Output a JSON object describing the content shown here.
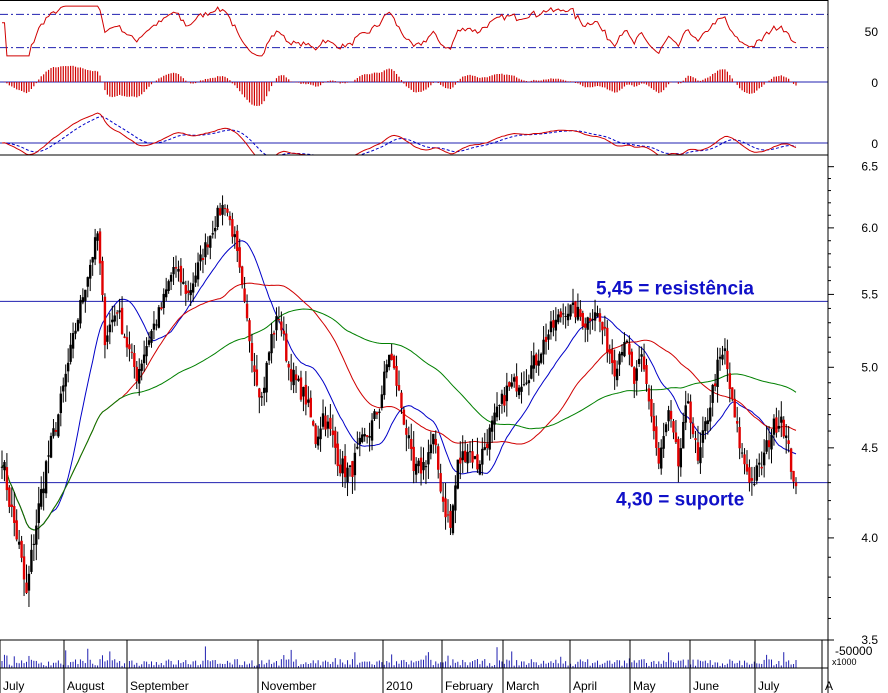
{
  "chart_data": {
    "type": "candlestick",
    "scale": "log",
    "ylim": [
      3.5,
      6.6
    ],
    "price_ticks": [
      "6.5",
      "6.0",
      "5.5",
      "5.0",
      "4.5",
      "4.0",
      "3.5"
    ],
    "x_labels": [
      "July",
      "August",
      "September",
      "November",
      "2010",
      "February",
      "March",
      "April",
      "May",
      "June",
      "July",
      "A"
    ],
    "annotations": [
      {
        "text": "5,45 = resistência",
        "value": 5.45
      },
      {
        "text": "4,30 = suporte",
        "value": 4.3
      }
    ],
    "indicators": {
      "rsi": {
        "tick": "50",
        "bands": [
          30,
          70
        ]
      },
      "macd_hist": {
        "tick": "0"
      },
      "macd_lines": {
        "tick": "0"
      }
    },
    "volume": {
      "tick": "50000",
      "unit": "x1000"
    },
    "keypoints": [
      {
        "i": 0,
        "c": 4.45
      },
      {
        "i": 3,
        "c": 4.2
      },
      {
        "i": 7,
        "c": 3.95
      },
      {
        "i": 10,
        "c": 3.7
      },
      {
        "i": 13,
        "c": 4.0
      },
      {
        "i": 18,
        "c": 4.4
      },
      {
        "i": 23,
        "c": 4.7
      },
      {
        "i": 28,
        "c": 5.1
      },
      {
        "i": 33,
        "c": 5.5
      },
      {
        "i": 37,
        "c": 5.8
      },
      {
        "i": 39,
        "c": 5.95
      },
      {
        "i": 42,
        "c": 5.2
      },
      {
        "i": 47,
        "c": 5.4
      },
      {
        "i": 51,
        "c": 5.15
      },
      {
        "i": 55,
        "c": 4.95
      },
      {
        "i": 60,
        "c": 5.2
      },
      {
        "i": 65,
        "c": 5.4
      },
      {
        "i": 70,
        "c": 5.7
      },
      {
        "i": 76,
        "c": 5.5
      },
      {
        "i": 82,
        "c": 5.8
      },
      {
        "i": 88,
        "c": 6.1
      },
      {
        "i": 91,
        "c": 6.2
      },
      {
        "i": 95,
        "c": 5.9
      },
      {
        "i": 99,
        "c": 5.4
      },
      {
        "i": 103,
        "c": 5.0
      },
      {
        "i": 106,
        "c": 4.8
      },
      {
        "i": 110,
        "c": 5.2
      },
      {
        "i": 113,
        "c": 5.35
      },
      {
        "i": 117,
        "c": 5.0
      },
      {
        "i": 120,
        "c": 4.9
      },
      {
        "i": 124,
        "c": 4.8
      },
      {
        "i": 128,
        "c": 4.55
      },
      {
        "i": 131,
        "c": 4.7
      },
      {
        "i": 135,
        "c": 4.55
      },
      {
        "i": 138,
        "c": 4.4
      },
      {
        "i": 142,
        "c": 4.35
      },
      {
        "i": 146,
        "c": 4.5
      },
      {
        "i": 150,
        "c": 4.6
      },
      {
        "i": 154,
        "c": 4.75
      },
      {
        "i": 158,
        "c": 5.1
      },
      {
        "i": 161,
        "c": 4.9
      },
      {
        "i": 165,
        "c": 4.6
      },
      {
        "i": 168,
        "c": 4.35
      },
      {
        "i": 172,
        "c": 4.4
      },
      {
        "i": 176,
        "c": 4.55
      },
      {
        "i": 180,
        "c": 4.2
      },
      {
        "i": 183,
        "c": 4.05
      },
      {
        "i": 186,
        "c": 4.4
      },
      {
        "i": 190,
        "c": 4.5
      },
      {
        "i": 194,
        "c": 4.4
      },
      {
        "i": 198,
        "c": 4.55
      },
      {
        "i": 202,
        "c": 4.7
      },
      {
        "i": 206,
        "c": 4.85
      },
      {
        "i": 210,
        "c": 4.9
      },
      {
        "i": 214,
        "c": 4.95
      },
      {
        "i": 218,
        "c": 5.05
      },
      {
        "i": 222,
        "c": 5.2
      },
      {
        "i": 226,
        "c": 5.3
      },
      {
        "i": 230,
        "c": 5.4
      },
      {
        "i": 234,
        "c": 5.38
      },
      {
        "i": 238,
        "c": 5.3
      },
      {
        "i": 242,
        "c": 5.4
      },
      {
        "i": 246,
        "c": 5.2
      },
      {
        "i": 250,
        "c": 5.0
      },
      {
        "i": 254,
        "c": 5.2
      },
      {
        "i": 258,
        "c": 4.9
      },
      {
        "i": 261,
        "c": 5.05
      },
      {
        "i": 264,
        "c": 4.8
      },
      {
        "i": 268,
        "c": 4.4
      },
      {
        "i": 272,
        "c": 4.7
      },
      {
        "i": 276,
        "c": 4.4
      },
      {
        "i": 280,
        "c": 4.8
      },
      {
        "i": 284,
        "c": 4.4
      },
      {
        "i": 288,
        "c": 4.7
      },
      {
        "i": 292,
        "c": 5.0
      },
      {
        "i": 295,
        "c": 5.1
      },
      {
        "i": 298,
        "c": 4.75
      },
      {
        "i": 302,
        "c": 4.45
      },
      {
        "i": 306,
        "c": 4.3
      },
      {
        "i": 310,
        "c": 4.4
      },
      {
        "i": 314,
        "c": 4.6
      },
      {
        "i": 318,
        "c": 4.7
      },
      {
        "i": 322,
        "c": 4.4
      },
      {
        "i": 324,
        "c": 4.28
      }
    ]
  }
}
